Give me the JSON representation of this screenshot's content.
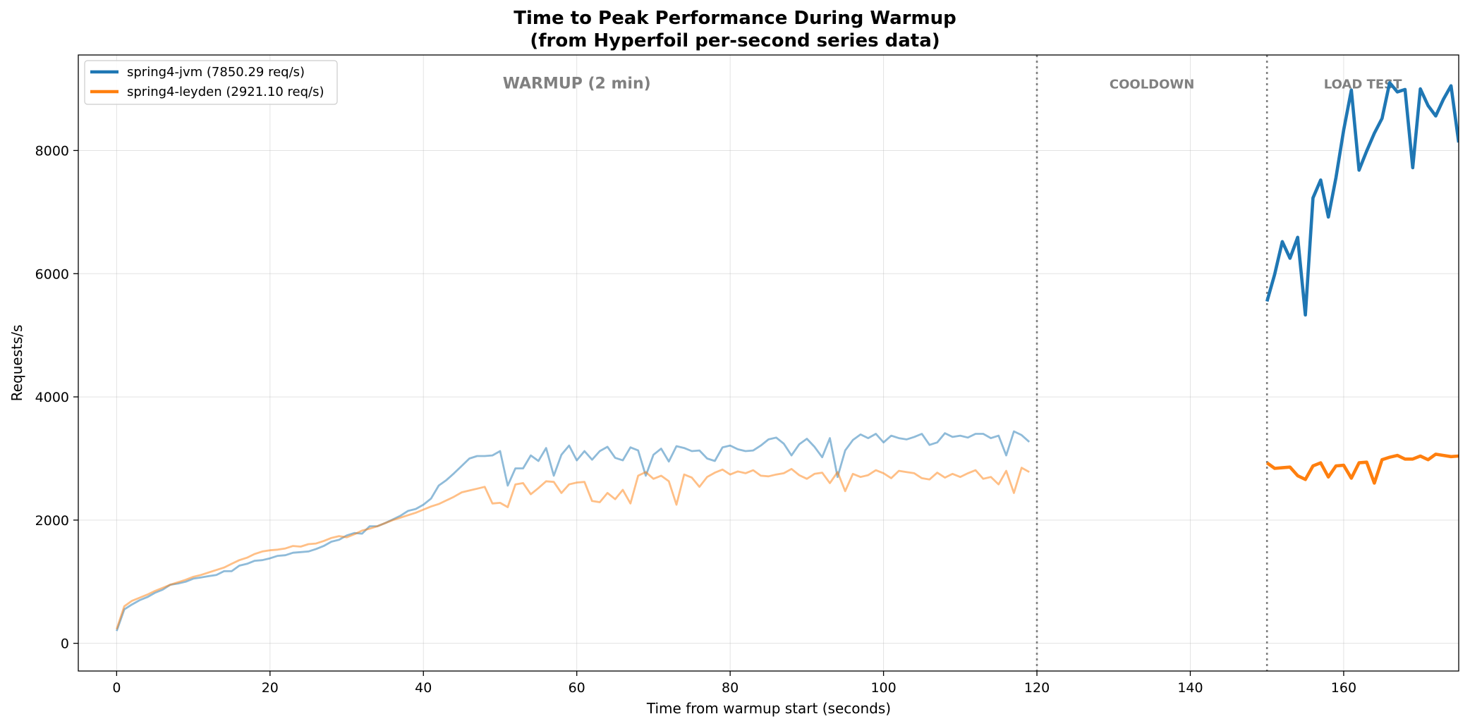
{
  "chart_data": {
    "type": "line",
    "title": "Time to Peak Performance During Warmup",
    "subtitle": "(from Hyperfoil per-second series data)",
    "xlabel": "Time from warmup start (seconds)",
    "ylabel": "Requests/s",
    "xlim": [
      -5,
      175
    ],
    "ylim": [
      -450,
      9550
    ],
    "xticks": [
      0,
      20,
      40,
      60,
      80,
      100,
      120,
      140,
      160
    ],
    "yticks": [
      0,
      2000,
      4000,
      6000,
      8000
    ],
    "grid": true,
    "legend_position": "top-left",
    "phase_boundaries": [
      120,
      150
    ],
    "regions": [
      {
        "label": "WARMUP (2 min)",
        "x": 60,
        "y": 9100
      },
      {
        "label": "COOLDOWN",
        "x": 135,
        "y": 9100
      },
      {
        "label": "LOAD TEST",
        "x": 162.5,
        "y": 9100
      }
    ],
    "series": [
      {
        "name": "spring4-jvm (7850.29 req/s)",
        "color": "#1f77b4",
        "warmup": {
          "x": [
            0,
            1,
            2,
            3,
            4,
            5,
            6,
            7,
            8,
            9,
            10,
            11,
            12,
            13,
            14,
            15,
            16,
            17,
            18,
            19,
            20,
            21,
            22,
            23,
            24,
            25,
            26,
            27,
            28,
            29,
            30,
            31,
            32,
            33,
            34,
            35,
            36,
            37,
            38,
            39,
            40,
            41,
            42,
            43,
            44,
            45,
            46,
            47,
            48,
            49,
            50,
            51,
            52,
            53,
            54,
            55,
            56,
            57,
            58,
            59,
            60,
            61,
            62,
            63,
            64,
            65,
            66,
            67,
            68,
            69,
            70,
            71,
            72,
            73,
            74,
            75,
            76,
            77,
            78,
            79,
            80,
            81,
            82,
            83,
            84,
            85,
            86,
            87,
            88,
            89,
            90,
            91,
            92,
            93,
            94,
            95,
            96,
            97,
            98,
            99,
            100,
            101,
            102,
            103,
            104,
            105,
            106,
            107,
            108,
            109,
            110,
            111,
            112,
            113,
            114,
            115,
            116,
            117,
            118,
            119
          ],
          "y": [
            200,
            550,
            630,
            700,
            750,
            820,
            870,
            950,
            970,
            1000,
            1050,
            1070,
            1090,
            1110,
            1170,
            1170,
            1260,
            1290,
            1340,
            1350,
            1380,
            1420,
            1430,
            1470,
            1480,
            1490,
            1530,
            1580,
            1650,
            1680,
            1750,
            1790,
            1780,
            1900,
            1900,
            1950,
            2010,
            2070,
            2150,
            2180,
            2250,
            2350,
            2560,
            2650,
            2760,
            2880,
            3000,
            3040,
            3040,
            3050,
            3120,
            2560,
            2840,
            2840,
            3050,
            2960,
            3170,
            2720,
            3060,
            3210,
            2970,
            3120,
            2980,
            3120,
            3190,
            3010,
            2970,
            3180,
            3130,
            2720,
            3060,
            3160,
            2950,
            3200,
            3170,
            3120,
            3130,
            3000,
            2960,
            3180,
            3210,
            3150,
            3120,
            3130,
            3210,
            3310,
            3340,
            3240,
            3050,
            3230,
            3320,
            3190,
            3020,
            3330,
            2700,
            3130,
            3300,
            3390,
            3330,
            3400,
            3260,
            3370,
            3330,
            3310,
            3350,
            3400,
            3220,
            3260,
            3410,
            3350,
            3370,
            3340,
            3400,
            3400,
            3330,
            3370,
            3050,
            3440,
            3380,
            3270
          ]
        },
        "load_test": {
          "x": [
            150,
            151,
            152,
            153,
            154,
            155,
            156,
            157,
            158,
            159,
            160,
            161,
            162,
            163,
            164,
            165,
            166,
            167,
            168,
            169,
            170,
            171,
            172,
            173,
            174,
            175
          ],
          "y": [
            5550,
            5990,
            6520,
            6250,
            6590,
            5330,
            7230,
            7520,
            6920,
            7560,
            8330,
            8980,
            7680,
            7990,
            8280,
            8520,
            9100,
            8950,
            8990,
            7720,
            9000,
            8730,
            8560,
            8830,
            9050,
            8130
          ]
        }
      },
      {
        "name": "spring4-leyden (2921.10 req/s)",
        "color": "#ff7f0e",
        "warmup": {
          "x": [
            0,
            1,
            2,
            3,
            4,
            5,
            6,
            7,
            8,
            9,
            10,
            11,
            12,
            13,
            14,
            15,
            16,
            17,
            18,
            19,
            20,
            21,
            22,
            23,
            24,
            25,
            26,
            27,
            28,
            29,
            30,
            31,
            32,
            33,
            34,
            35,
            36,
            37,
            38,
            39,
            40,
            41,
            42,
            43,
            44,
            45,
            46,
            47,
            48,
            49,
            50,
            51,
            52,
            53,
            54,
            55,
            56,
            57,
            58,
            59,
            60,
            61,
            62,
            63,
            64,
            65,
            66,
            67,
            68,
            69,
            70,
            71,
            72,
            73,
            74,
            75,
            76,
            77,
            78,
            79,
            80,
            81,
            82,
            83,
            84,
            85,
            86,
            87,
            88,
            89,
            90,
            91,
            92,
            93,
            94,
            95,
            96,
            97,
            98,
            99,
            100,
            101,
            102,
            103,
            104,
            105,
            106,
            107,
            108,
            109,
            110,
            111,
            112,
            113,
            114,
            115,
            116,
            117,
            118,
            119
          ],
          "y": [
            230,
            600,
            690,
            740,
            790,
            850,
            900,
            950,
            990,
            1030,
            1080,
            1110,
            1150,
            1190,
            1230,
            1290,
            1350,
            1390,
            1450,
            1490,
            1510,
            1520,
            1540,
            1580,
            1570,
            1610,
            1620,
            1660,
            1710,
            1740,
            1720,
            1770,
            1830,
            1860,
            1900,
            1950,
            2000,
            2040,
            2080,
            2120,
            2170,
            2220,
            2260,
            2320,
            2380,
            2450,
            2480,
            2510,
            2540,
            2270,
            2280,
            2210,
            2580,
            2600,
            2420,
            2520,
            2630,
            2620,
            2440,
            2580,
            2610,
            2620,
            2310,
            2290,
            2440,
            2340,
            2490,
            2270,
            2720,
            2780,
            2670,
            2720,
            2630,
            2250,
            2740,
            2690,
            2540,
            2700,
            2770,
            2820,
            2740,
            2790,
            2760,
            2810,
            2720,
            2710,
            2740,
            2760,
            2830,
            2730,
            2670,
            2750,
            2770,
            2600,
            2780,
            2470,
            2750,
            2700,
            2730,
            2810,
            2760,
            2680,
            2800,
            2780,
            2760,
            2680,
            2660,
            2770,
            2690,
            2750,
            2700,
            2760,
            2810,
            2670,
            2700,
            2580,
            2800,
            2440,
            2850,
            2780
          ]
        },
        "load_test": {
          "x": [
            150,
            151,
            152,
            153,
            154,
            155,
            156,
            157,
            158,
            159,
            160,
            161,
            162,
            163,
            164,
            165,
            166,
            167,
            168,
            169,
            170,
            171,
            172,
            173,
            174,
            175
          ],
          "y": [
            2930,
            2840,
            2850,
            2860,
            2720,
            2660,
            2880,
            2930,
            2700,
            2880,
            2890,
            2680,
            2930,
            2940,
            2600,
            2980,
            3020,
            3050,
            2990,
            2990,
            3040,
            2980,
            3070,
            3050,
            3030,
            3040
          ]
        }
      }
    ]
  }
}
